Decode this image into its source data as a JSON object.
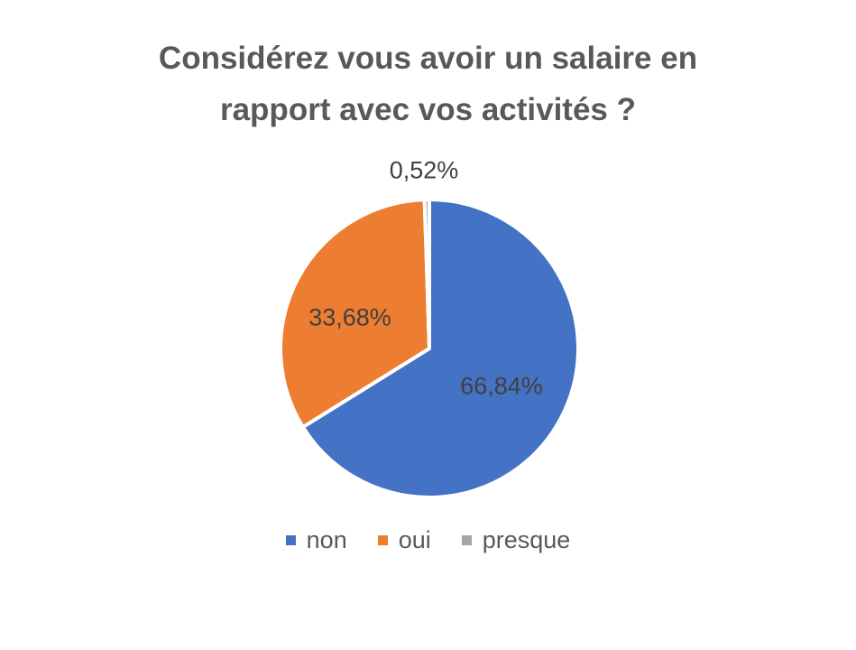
{
  "chart_data": {
    "type": "pie",
    "title": "Considérez vous avoir un salaire en rapport avec vos activités ?",
    "title_lines": [
      "Considérez vous avoir un salaire en",
      "rapport avec vos activités ?"
    ],
    "categories": [
      "non",
      "oui",
      "presque"
    ],
    "values": [
      66.84,
      33.68,
      0.52
    ],
    "labels": [
      "66,84%",
      "33,68%",
      "0,52%"
    ],
    "colors": [
      "#4472C4",
      "#ED7D31",
      "#A5A5A5"
    ],
    "legend_position": "bottom",
    "start_angle": 0,
    "direction": "clockwise"
  },
  "legend": [
    {
      "label": "non",
      "color": "#4472C4"
    },
    {
      "label": "oui",
      "color": "#ED7D31"
    },
    {
      "label": "presque",
      "color": "#A5A5A5"
    }
  ]
}
